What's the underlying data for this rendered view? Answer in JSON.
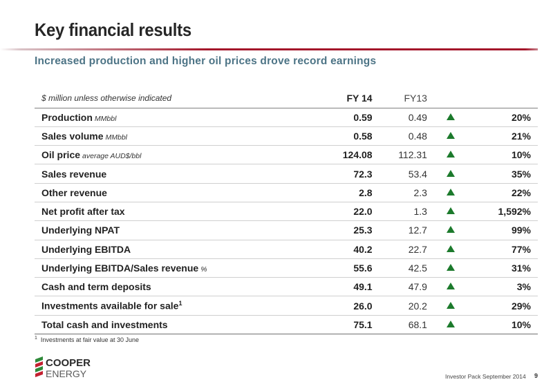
{
  "title": "Key financial results",
  "subtitle": "Increased production and higher oil prices drove record earnings",
  "table": {
    "header": {
      "note": "$ million unless otherwise indicated",
      "fy14": "FY 14",
      "fy13": "FY13"
    },
    "rows": [
      {
        "label": "Production",
        "unit": "MMbbl",
        "fy14": "0.59",
        "fy13": "0.49",
        "change": "20%"
      },
      {
        "label": "Sales volume",
        "unit": "MMbbl",
        "fy14": "0.58",
        "fy13": "0.48",
        "change": "21%"
      },
      {
        "label": "Oil price",
        "unit": "average AUD$/bbl",
        "fy14": "124.08",
        "fy13": "112.31",
        "change": "10%"
      },
      {
        "label": "Sales revenue",
        "unit": "",
        "fy14": "72.3",
        "fy13": "53.4",
        "change": "35%"
      },
      {
        "label": "Other revenue",
        "unit": "",
        "fy14": "2.8",
        "fy13": "2.3",
        "change": "22%"
      },
      {
        "label": "Net profit after tax",
        "unit": "",
        "fy14": "22.0",
        "fy13": "1.3",
        "change": "1,592%"
      },
      {
        "label": "Underlying NPAT",
        "unit": "",
        "fy14": "25.3",
        "fy13": "12.7",
        "change": "99%"
      },
      {
        "label": "Underlying EBITDA",
        "unit": "",
        "fy14": "40.2",
        "fy13": "22.7",
        "change": "77%"
      },
      {
        "label": "Underlying EBITDA/Sales revenue",
        "unit": "%",
        "fy14": "55.6",
        "fy13": "42.5",
        "change": "31%"
      },
      {
        "label": "Cash and term deposits",
        "unit": "",
        "fy14": "49.1",
        "fy13": "47.9",
        "change": "3%"
      },
      {
        "label": "Investments available for sale",
        "sup": "1",
        "unit": "",
        "fy14": "26.0",
        "fy13": "20.2",
        "change": "29%"
      },
      {
        "label": "Total cash and investments",
        "unit": "",
        "fy14": "75.1",
        "fy13": "68.1",
        "change": "10%"
      }
    ],
    "arrow_icon": "triangle-up-icon",
    "arrow_color": "#1c7a2c"
  },
  "footnote": {
    "marker": "1",
    "text": "Investments at fair value at 30 June"
  },
  "logo": {
    "line1": "COOPER",
    "line2": "ENERGY"
  },
  "footer": {
    "text": "Investor Pack September 2014",
    "page": "9"
  },
  "colors": {
    "accent_red": "#a4162a",
    "subtitle_blue": "#4d7486",
    "logo_green": "#2f8a3a",
    "logo_red": "#c32030"
  }
}
